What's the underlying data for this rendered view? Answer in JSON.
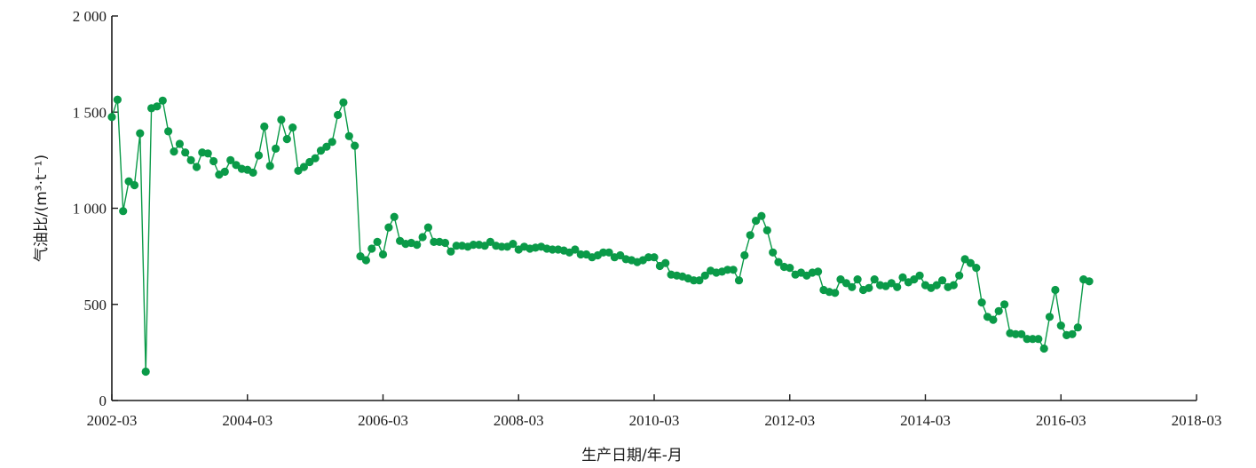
{
  "chart_data": {
    "type": "line",
    "xlabel": "生产日期/年-月",
    "ylabel": "气油比/(m³·t⁻¹)",
    "xlim": [
      "2002-03",
      "2018-03"
    ],
    "ylim": [
      0,
      2000
    ],
    "x_ticks": [
      "2002-03",
      "2004-03",
      "2006-03",
      "2008-03",
      "2010-03",
      "2012-03",
      "2014-03",
      "2016-03",
      "2018-03"
    ],
    "y_ticks": [
      {
        "value": 0,
        "label": "0"
      },
      {
        "value": 500,
        "label": "500"
      },
      {
        "value": 1000,
        "label": "1 000"
      },
      {
        "value": 1500,
        "label": "1 500"
      },
      {
        "value": 2000,
        "label": "2 000"
      }
    ],
    "grid": false,
    "legend": "none",
    "colors": {
      "series": "#0a9a48",
      "axis": "#1a1a1a"
    },
    "series": [
      {
        "x": [
          "2002-03",
          "2002-04",
          "2002-05",
          "2002-06",
          "2002-07",
          "2002-08",
          "2002-09",
          "2002-10",
          "2002-11",
          "2002-12",
          "2003-01",
          "2003-02",
          "2003-03",
          "2003-04",
          "2003-05",
          "2003-06",
          "2003-07",
          "2003-08",
          "2003-09",
          "2003-10",
          "2003-11",
          "2003-12",
          "2004-01",
          "2004-02",
          "2004-03",
          "2004-04",
          "2004-05",
          "2004-06",
          "2004-07",
          "2004-08",
          "2004-09",
          "2004-10",
          "2004-11",
          "2004-12",
          "2005-01",
          "2005-02",
          "2005-03",
          "2005-04",
          "2005-05",
          "2005-06",
          "2005-07",
          "2005-08",
          "2005-09",
          "2005-10",
          "2005-11",
          "2005-12",
          "2006-01",
          "2006-02",
          "2006-03",
          "2006-04",
          "2006-05",
          "2006-06",
          "2006-07",
          "2006-08",
          "2006-09",
          "2006-10",
          "2006-11",
          "2006-12",
          "2007-01",
          "2007-02",
          "2007-03",
          "2007-04",
          "2007-05",
          "2007-06",
          "2007-07",
          "2007-08",
          "2007-09",
          "2007-10",
          "2007-11",
          "2007-12",
          "2008-01",
          "2008-02",
          "2008-03",
          "2008-04",
          "2008-05",
          "2008-06",
          "2008-07",
          "2008-08",
          "2008-09",
          "2008-10",
          "2008-11",
          "2008-12",
          "2009-01",
          "2009-02",
          "2009-03",
          "2009-04",
          "2009-05",
          "2009-06",
          "2009-07",
          "2009-08",
          "2009-09",
          "2009-10",
          "2009-11",
          "2009-12",
          "2010-01",
          "2010-02",
          "2010-03",
          "2010-04",
          "2010-05",
          "2010-06",
          "2010-07",
          "2010-08",
          "2010-09",
          "2010-10",
          "2010-11",
          "2010-12",
          "2011-01",
          "2011-02",
          "2011-03",
          "2011-04",
          "2011-05",
          "2011-06",
          "2011-07",
          "2011-08",
          "2011-09",
          "2011-10",
          "2011-11",
          "2011-12",
          "2012-01",
          "2012-02",
          "2012-03",
          "2012-04",
          "2012-05",
          "2012-06",
          "2012-07",
          "2012-08",
          "2012-09",
          "2012-10",
          "2012-11",
          "2012-12",
          "2013-01",
          "2013-02",
          "2013-03",
          "2013-04",
          "2013-05",
          "2013-06",
          "2013-07",
          "2013-08",
          "2013-09",
          "2013-10",
          "2013-11",
          "2013-12",
          "2014-01",
          "2014-02",
          "2014-03",
          "2014-04",
          "2014-05",
          "2014-06",
          "2014-07",
          "2014-08",
          "2014-09",
          "2014-10",
          "2014-11",
          "2014-12",
          "2015-01",
          "2015-02",
          "2015-03",
          "2015-04",
          "2015-05",
          "2015-06",
          "2015-07",
          "2015-08",
          "2015-09",
          "2015-10",
          "2015-11",
          "2015-12",
          "2016-01",
          "2016-02",
          "2016-03",
          "2016-04",
          "2016-05",
          "2016-06",
          "2016-07",
          "2016-08"
        ],
        "values": [
          1475,
          1565,
          985,
          1140,
          1120,
          1390,
          150,
          1520,
          1530,
          1560,
          1400,
          1295,
          1335,
          1290,
          1250,
          1215,
          1290,
          1285,
          1245,
          1175,
          1190,
          1250,
          1225,
          1205,
          1200,
          1185,
          1275,
          1425,
          1220,
          1310,
          1460,
          1360,
          1420,
          1195,
          1215,
          1240,
          1260,
          1300,
          1320,
          1345,
          1485,
          1550,
          1375,
          1325,
          750,
          730,
          790,
          825,
          760,
          900,
          955,
          830,
          815,
          820,
          810,
          850,
          900,
          825,
          825,
          820,
          775,
          805,
          805,
          800,
          810,
          810,
          805,
          825,
          805,
          800,
          800,
          815,
          785,
          800,
          790,
          795,
          800,
          790,
          785,
          785,
          780,
          770,
          785,
          760,
          760,
          745,
          755,
          770,
          770,
          745,
          755,
          735,
          730,
          720,
          730,
          745,
          745,
          700,
          715,
          655,
          650,
          645,
          635,
          625,
          625,
          650,
          675,
          665,
          670,
          680,
          680,
          625,
          755,
          860,
          935,
          960,
          885,
          770,
          720,
          695,
          690,
          655,
          665,
          650,
          665,
          670,
          575,
          565,
          560,
          630,
          610,
          590,
          630,
          575,
          585,
          630,
          600,
          595,
          610,
          590,
          640,
          615,
          630,
          650,
          600,
          585,
          600,
          625,
          590,
          600,
          650,
          735,
          715,
          690,
          510,
          435,
          420,
          465,
          500,
          350,
          345,
          345,
          320,
          320,
          320,
          270,
          435,
          575,
          390,
          340,
          345,
          380,
          630,
          620
        ]
      }
    ]
  }
}
